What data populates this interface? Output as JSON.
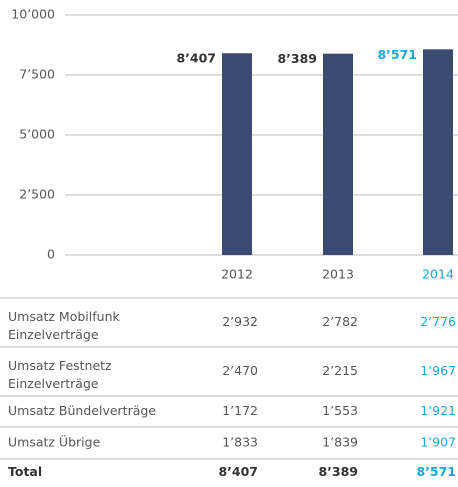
{
  "chart_data": {
    "type": "bar",
    "categories": [
      "2012",
      "2013",
      "2014"
    ],
    "values": [
      8407,
      8389,
      8571
    ],
    "value_labels": [
      "8’407",
      "8’389",
      "8’571"
    ],
    "color": "#3b4a70",
    "label_colors": [
      "#333333",
      "#333333",
      "#1ba6dc"
    ],
    "ylim": [
      0,
      10000
    ],
    "yticks": [
      0,
      {
        "value": 2500,
        "label": "2’500"
      },
      {
        "value": 5000,
        "label": "5’000"
      },
      {
        "value": 7500,
        "label": "7’500"
      },
      {
        "value": 10000,
        "label": "10’000"
      }
    ],
    "grid": true
  },
  "table": {
    "column_colors": [
      "#555555",
      "#555555",
      "#555555",
      "#1ba6dc"
    ],
    "rows": [
      [
        "Umsatz Mobilfunk\nEinzelverträge",
        "2’932",
        "2’782",
        "2’776"
      ],
      [
        "Umsatz Festnetz\nEinzelverträge",
        "2’470",
        "2’215",
        "1’967"
      ],
      [
        "Umsatz Bündelverträge",
        "1’172",
        "1’553",
        "1’921"
      ],
      [
        "Umsatz Übrige",
        "1’833",
        "1’839",
        "1’907"
      ],
      [
        "Total",
        "8’407",
        "8’389",
        "8’571"
      ]
    ]
  }
}
